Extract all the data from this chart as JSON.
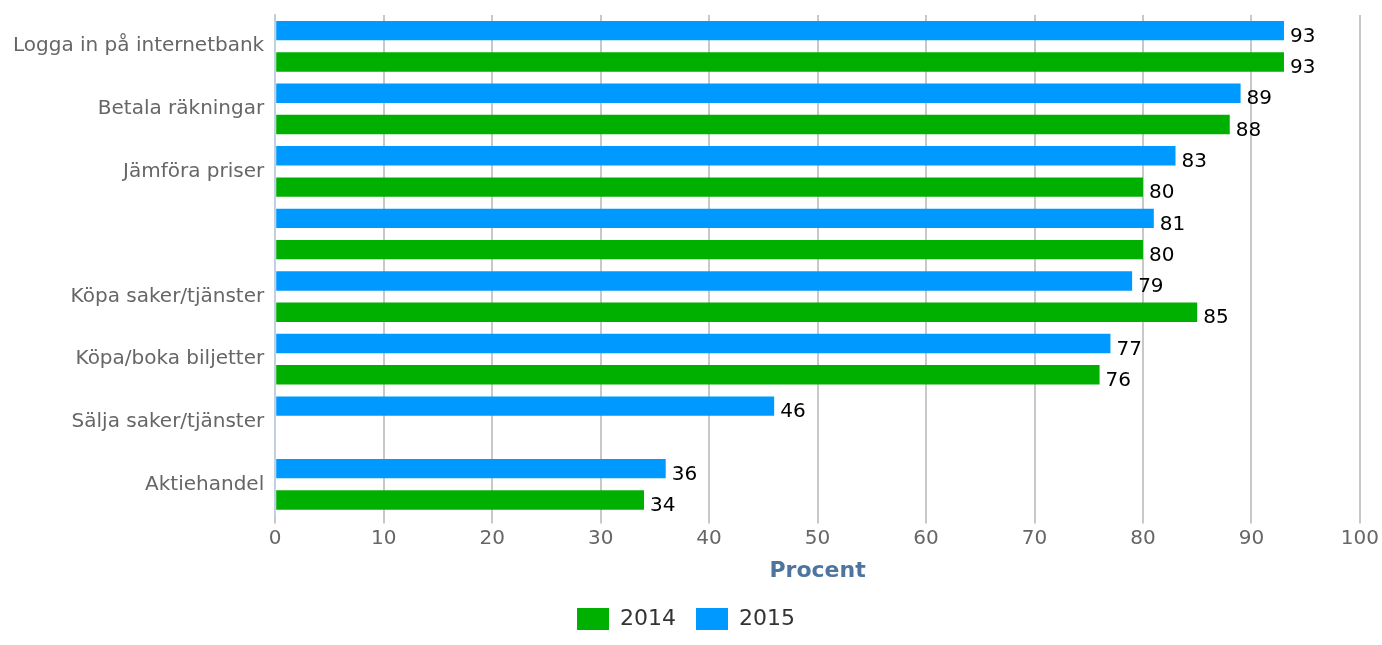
{
  "chart_data": {
    "type": "bar",
    "orientation": "horizontal",
    "xlabel": "Procent",
    "categories": [
      "Logga in på internetbank",
      "Betala räkningar",
      "Jämföra priser",
      null,
      "Köpa saker/tjänster",
      "Köpa/boka biljetter",
      "Sälja saker/tjänster",
      "Aktiehandel"
    ],
    "series": [
      {
        "name": "2014",
        "color": "#00b000",
        "values": [
          93,
          88,
          80,
          80,
          85,
          76,
          null,
          34
        ]
      },
      {
        "name": "2015",
        "color": "#0099ff",
        "values": [
          93,
          89,
          83,
          81,
          79,
          77,
          46,
          36
        ]
      }
    ],
    "xlim": [
      0,
      100
    ],
    "xticks": [
      0,
      10,
      20,
      30,
      40,
      50,
      60,
      70,
      80,
      90,
      100
    ],
    "grid": "x",
    "legend": "bottom",
    "data_labels": true
  }
}
